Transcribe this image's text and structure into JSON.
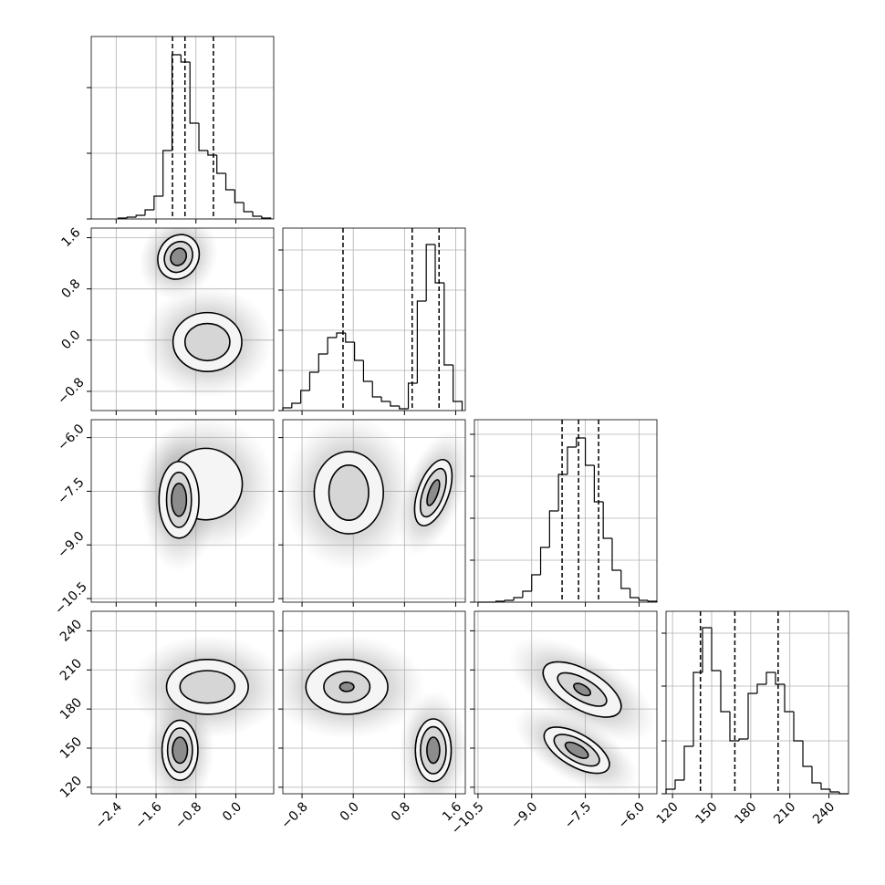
{
  "chart_data": {
    "type": "corner",
    "grid": true,
    "line_color": "#000000",
    "params": [
      {
        "lim": [
          -2.9,
          0.76
        ],
        "ticks": [
          {
            "value": -2.4,
            "label": "−2.4"
          },
          {
            "value": -1.6,
            "label": "−1.6"
          },
          {
            "value": -0.8,
            "label": "−0.8"
          },
          {
            "value": 0,
            "label": "0.0"
          }
        ]
      },
      {
        "lim": [
          -1.1,
          1.75
        ],
        "ticks": [
          {
            "value": -0.8,
            "label": "−0.8"
          },
          {
            "value": 0,
            "label": "0.0"
          },
          {
            "value": 0.8,
            "label": "0.8"
          },
          {
            "value": 1.6,
            "label": "1.6"
          }
        ]
      },
      {
        "lim": [
          -10.6,
          -5.5
        ],
        "ticks": [
          {
            "value": -10.5,
            "label": "−10.5"
          },
          {
            "value": -9,
            "label": "−9.0"
          },
          {
            "value": -7.5,
            "label": "−7.5"
          },
          {
            "value": -6,
            "label": "−6.0"
          }
        ]
      },
      {
        "lim": [
          115,
          255
        ],
        "ticks": [
          120,
          150,
          180,
          210,
          240
        ]
      }
    ],
    "histograms": [
      {
        "bins": [
          -2.36,
          -2.18,
          -2.0,
          -1.82,
          -1.64,
          -1.46,
          -1.28,
          -1.1,
          -0.92,
          -0.74,
          -0.56,
          -0.38,
          -0.2,
          -0.02,
          0.16,
          0.34,
          0.52,
          0.7
        ],
        "counts": [
          1,
          2,
          4,
          10,
          25,
          75,
          180,
          172,
          105,
          75,
          70,
          50,
          32,
          18,
          8,
          3,
          1
        ],
        "ylim": [
          0,
          200
        ],
        "yticks": [
          0,
          72,
          144
        ],
        "quantiles": [
          -1.27,
          -1.02,
          -0.45
        ]
      },
      {
        "bins": [
          -1.1,
          -0.96,
          -0.82,
          -0.68,
          -0.54,
          -0.4,
          -0.26,
          -0.12,
          0.02,
          0.16,
          0.3,
          0.44,
          0.58,
          0.72,
          0.86,
          1.0,
          1.14,
          1.28,
          1.42,
          1.56,
          1.7
        ],
        "counts": [
          3,
          8,
          22,
          42,
          62,
          80,
          85,
          75,
          55,
          32,
          15,
          10,
          5,
          2,
          30,
          120,
          182,
          140,
          50,
          10
        ],
        "ylim": [
          0,
          200
        ],
        "yticks": [
          0,
          44,
          88,
          132,
          176
        ],
        "quantiles": [
          -0.16,
          0.92,
          1.34
        ]
      },
      {
        "bins": [
          -10.5,
          -10.25,
          -10.0,
          -9.75,
          -9.5,
          -9.25,
          -9.0,
          -8.75,
          -8.5,
          -8.25,
          -8.0,
          -7.75,
          -7.5,
          -7.25,
          -7.0,
          -6.75,
          -6.5,
          -6.25,
          -6.0,
          -5.75,
          -5.5
        ],
        "counts": [
          0,
          0,
          1,
          2,
          5,
          12,
          30,
          60,
          100,
          140,
          170,
          180,
          150,
          110,
          70,
          35,
          15,
          5,
          2,
          1
        ],
        "ylim": [
          0,
          200
        ],
        "yticks": [
          0,
          46,
          92,
          138,
          184
        ],
        "quantiles": [
          -8.15,
          -7.69,
          -7.13
        ]
      },
      {
        "bins": [
          115,
          122,
          129,
          136,
          143,
          150,
          157,
          164,
          171,
          178,
          185,
          192,
          199,
          206,
          213,
          220,
          227,
          234,
          241,
          248,
          255
        ],
        "counts": [
          5,
          15,
          52,
          133,
          182,
          135,
          90,
          58,
          60,
          110,
          120,
          133,
          120,
          90,
          58,
          30,
          12,
          5,
          2,
          0
        ],
        "ylim": [
          0,
          200
        ],
        "yticks": [
          0,
          58,
          118,
          176
        ],
        "quantiles": [
          141.4,
          167.8,
          201
        ]
      }
    ],
    "panels": [
      {
        "x_param": 0,
        "y_param": 1,
        "modes": [
          {
            "center": [
              -1.15,
              1.3
            ],
            "contours": [
              [
                0.4,
                0.36,
                30
              ],
              [
                0.27,
                0.25,
                30
              ],
              [
                0.15,
                0.14,
                30
              ]
            ]
          },
          {
            "center": [
              -0.57,
              -0.03
            ],
            "contours": [
              [
                0.69,
                0.46,
                0
              ],
              [
                0.45,
                0.29,
                0
              ]
            ]
          }
        ]
      },
      {
        "x_param": 0,
        "y_param": 2,
        "modes": [
          {
            "center": [
              -0.6,
              -7.3
            ],
            "contours": [
              [
                0.73,
                1.0,
                0
              ]
            ]
          },
          {
            "center": [
              -1.14,
              -7.74
            ],
            "contours": [
              [
                0.4,
                1.07,
                0
              ],
              [
                0.25,
                0.77,
                0
              ],
              [
                0.15,
                0.46,
                0
              ]
            ]
          }
        ]
      },
      {
        "x_param": 0,
        "y_param": 3,
        "modes": [
          {
            "center": [
              -1.12,
              148.4
            ],
            "contours": [
              [
                0.36,
                23,
                0
              ],
              [
                0.25,
                17,
                0
              ],
              [
                0.15,
                10,
                0
              ]
            ]
          },
          {
            "center": [
              -0.57,
              197
            ],
            "contours": [
              [
                0.82,
                21,
                0
              ],
              [
                0.55,
                12.5,
                0
              ]
            ]
          }
        ]
      },
      {
        "x_param": 1,
        "y_param": 2,
        "modes": [
          {
            "center": [
              -0.07,
              -7.54
            ],
            "contours": [
              [
                0.54,
                1.15,
                0
              ],
              [
                0.31,
                0.77,
                0
              ]
            ]
          },
          {
            "center": [
              1.25,
              -7.54
            ],
            "contours": [
              [
                0.24,
                0.97,
                20
              ],
              [
                0.16,
                0.71,
                20
              ],
              [
                0.07,
                0.38,
                20
              ]
            ]
          }
        ]
      },
      {
        "x_param": 1,
        "y_param": 3,
        "modes": [
          {
            "center": [
              -0.1,
              197
            ],
            "contours": [
              [
                0.64,
                21,
                0
              ],
              [
                0.36,
                12,
                0
              ],
              [
                0.11,
                3.5,
                0
              ]
            ]
          },
          {
            "center": [
              1.25,
              148.4
            ],
            "contours": [
              [
                0.28,
                24,
                0
              ],
              [
                0.2,
                18,
                0
              ],
              [
                0.1,
                10,
                0
              ]
            ]
          }
        ]
      },
      {
        "x_param": 2,
        "y_param": 3,
        "modes": [
          {
            "center": [
              -7.59,
              195
            ],
            "contours": [
              [
                1.22,
                15,
                30
              ],
              [
                0.77,
                8.3,
                30
              ],
              [
                0.26,
                3.5,
                30
              ]
            ]
          },
          {
            "center": [
              -7.74,
              148.4
            ],
            "contours": [
              [
                1.02,
                12.5,
                30
              ],
              [
                0.71,
                8.3,
                30
              ],
              [
                0.36,
                4.2,
                30
              ]
            ]
          }
        ]
      }
    ]
  }
}
